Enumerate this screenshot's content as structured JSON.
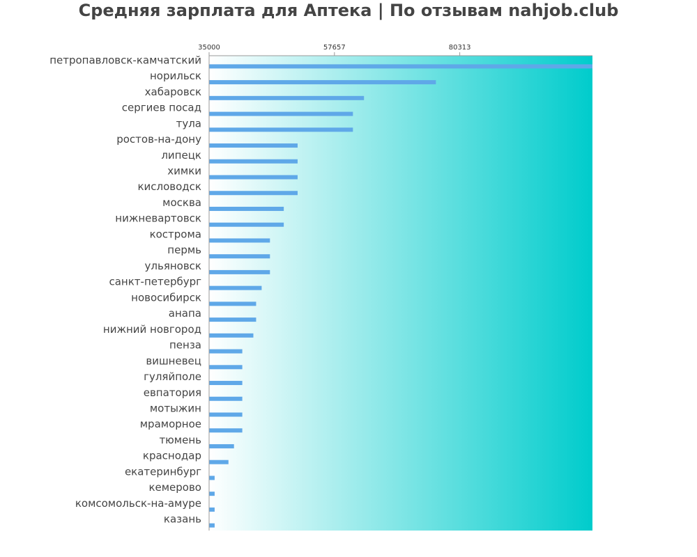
{
  "chart_data": {
    "type": "bar",
    "orientation": "horizontal",
    "title": "Средняя зарплата для Аптека | По отзывам nahjob.club",
    "xlabel": "",
    "ylabel": "",
    "x_ticks": [
      "35000",
      "57657",
      "80313"
    ],
    "xlim": [
      35000,
      104300
    ],
    "categories": [
      "петропавловск-камчатский",
      "норильск",
      "хабаровск",
      "сергиев посад",
      "тула",
      "ростов-на-дону",
      "липецк",
      "химки",
      "кисловодск",
      "москва",
      "нижневартовск",
      "кострома",
      "пермь",
      "ульяновск",
      "санкт-петербург",
      "новосибирск",
      "анапа",
      "нижний новгород",
      "пенза",
      "вишневец",
      "гуляйполе",
      "евпатория",
      "мотыжин",
      "мраморное",
      "тюмень",
      "краснодар",
      "екатеринбург",
      "кемерово",
      "комсомольск-на-амуре",
      "казань"
    ],
    "values": [
      104300,
      76000,
      63000,
      61000,
      61000,
      51000,
      51000,
      51000,
      51000,
      48500,
      48500,
      46000,
      46000,
      46000,
      44500,
      43500,
      43500,
      43000,
      41000,
      41000,
      41000,
      41000,
      41000,
      41000,
      39500,
      38500,
      36000,
      36000,
      36000,
      36000
    ],
    "grid": false,
    "legend": "none",
    "colors": {
      "bar": "#5fa8e8",
      "background_start": "#ffffff",
      "background_end": "#00cccc",
      "axis": "#999999"
    }
  }
}
